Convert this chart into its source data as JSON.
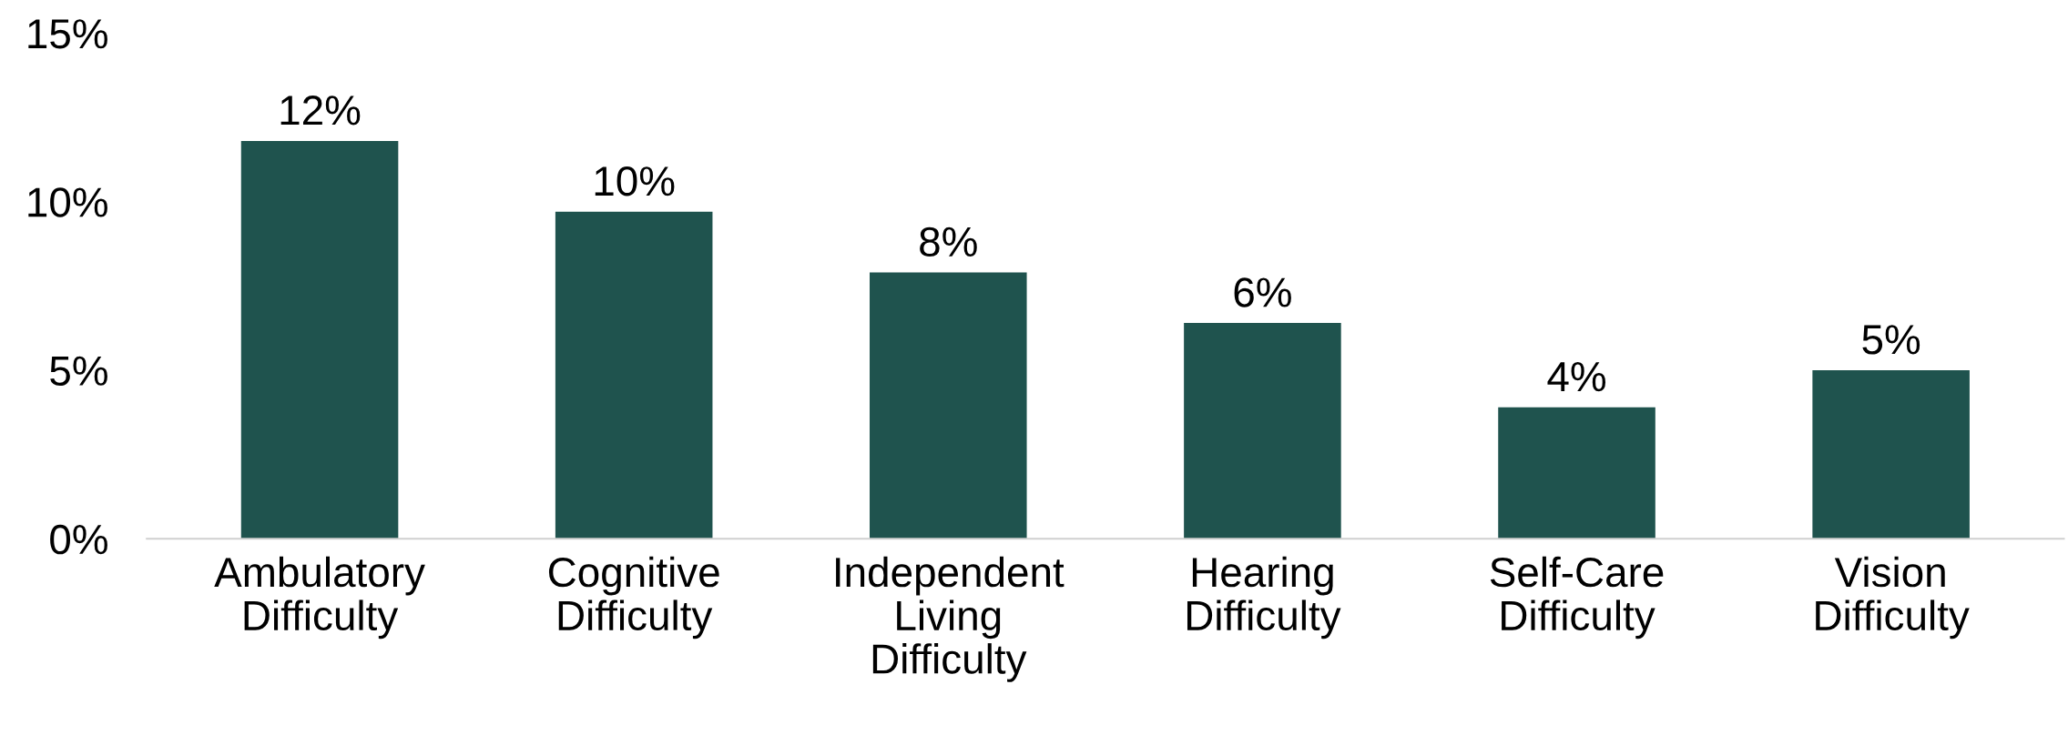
{
  "chart_data": {
    "type": "bar",
    "categories": [
      "Ambulatory\nDifficulty",
      "Cognitive\nDifficulty",
      "Independent\nLiving\nDifficulty",
      "Hearing\nDifficulty",
      "Self-Care\nDifficulty",
      "Vision\nDifficulty"
    ],
    "values": [
      11.8,
      9.7,
      7.9,
      6.4,
      3.9,
      5.0
    ],
    "value_labels": [
      "12%",
      "10%",
      "8%",
      "6%",
      "4%",
      "5%"
    ],
    "color": "#1f534e",
    "ylim": [
      0,
      15
    ],
    "yticks": [
      {
        "value": 0,
        "label": "0%"
      },
      {
        "value": 5,
        "label": "5%"
      },
      {
        "value": 10,
        "label": "10%"
      },
      {
        "value": 15,
        "label": "15%"
      }
    ],
    "grid": false,
    "legend": false
  }
}
